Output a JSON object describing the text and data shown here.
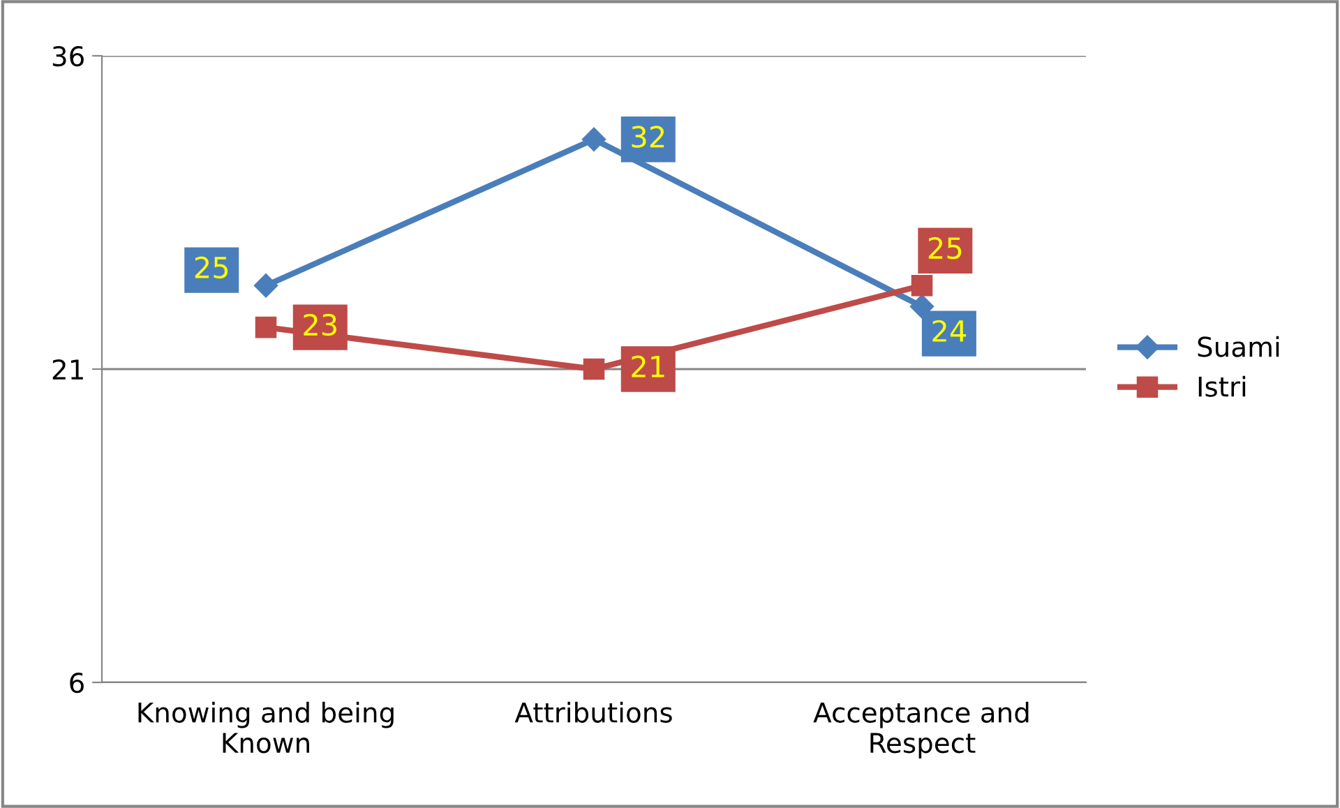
{
  "chart_data": {
    "type": "line",
    "categories": [
      "Knowing and being\nKnown",
      "Attributions",
      "Acceptance and\nRespect"
    ],
    "series": [
      {
        "name": "Suami",
        "color": "#4a7ebb",
        "values": [
          25,
          32,
          24
        ],
        "marker": "diamond"
      },
      {
        "name": "Istri",
        "color": "#be4b48",
        "values": [
          23,
          21,
          25
        ],
        "marker": "square"
      }
    ],
    "ylim": [
      6,
      36
    ],
    "yticks": [
      6,
      21,
      36
    ],
    "grid": "y",
    "legend": "right",
    "data_labels": true,
    "line_style": "solid"
  }
}
